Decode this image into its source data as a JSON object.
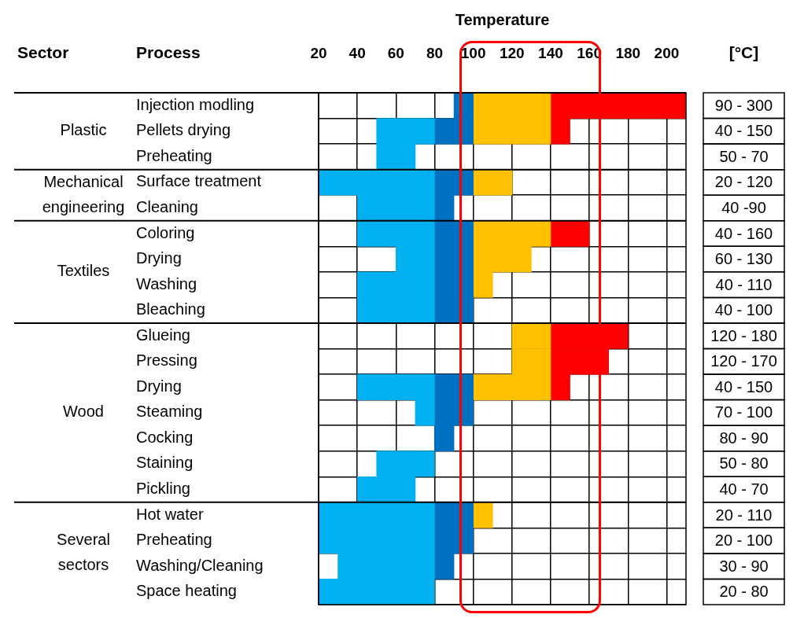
{
  "chart_data": {
    "type": "bar",
    "orientation": "horizontal",
    "xlabel": "Temperature",
    "ylabel": "Process",
    "y2label": "[°C]",
    "categories": [
      "Injection modling",
      "Pellets drying",
      "Preheating",
      "Surface treatment",
      "Cleaning",
      "Coloring",
      "Drying",
      "Washing",
      "Bleaching",
      "Glueing",
      "Pressing",
      "Drying",
      "Steaming",
      "Cocking",
      "Staining",
      "Pickling",
      "Hot water",
      "Preheating",
      "Washing/Cleaning",
      "Space heating"
    ],
    "series": [
      {
        "color": "#00b0f0",
        "base": [
          null,
          50,
          50,
          20,
          40,
          40,
          60,
          40,
          40,
          null,
          null,
          40,
          70,
          null,
          50,
          40,
          20,
          20,
          30,
          20
        ],
        "values": [
          null,
          30,
          20,
          60,
          40,
          40,
          20,
          40,
          40,
          null,
          null,
          40,
          10,
          null,
          30,
          30,
          60,
          60,
          50,
          60
        ]
      },
      {
        "color": "#0070c0",
        "base": [
          90,
          80,
          null,
          80,
          80,
          80,
          80,
          80,
          80,
          null,
          null,
          80,
          80,
          80,
          null,
          null,
          80,
          80,
          80,
          null
        ],
        "values": [
          10,
          20,
          null,
          20,
          10,
          20,
          20,
          20,
          20,
          null,
          null,
          20,
          20,
          10,
          null,
          null,
          20,
          20,
          10,
          null
        ]
      },
      {
        "color": "#ffc000",
        "base": [
          100,
          100,
          null,
          100,
          null,
          100,
          100,
          100,
          null,
          120,
          120,
          100,
          null,
          null,
          null,
          null,
          100,
          null,
          null,
          null
        ],
        "values": [
          40,
          40,
          null,
          20,
          null,
          40,
          30,
          10,
          null,
          20,
          20,
          40,
          null,
          null,
          null,
          null,
          10,
          null,
          null,
          null
        ]
      },
      {
        "color": "#ff0000",
        "base": [
          140,
          140,
          null,
          null,
          null,
          140,
          null,
          null,
          null,
          140,
          140,
          140,
          null,
          null,
          null,
          null,
          null,
          null,
          null,
          null
        ],
        "values": [
          70,
          10,
          null,
          null,
          null,
          20,
          null,
          null,
          null,
          40,
          30,
          10,
          null,
          null,
          null,
          null,
          null,
          null,
          null,
          null
        ]
      }
    ],
    "value_labels": [
      "90 - 300",
      "40 - 150",
      "50 - 70",
      "20 - 120",
      "40 -90",
      "40 - 160",
      "60 - 130",
      "40 - 110",
      "40 - 100",
      "120 - 180",
      "120 - 170",
      "40 - 150",
      "70 - 100",
      "80 - 90",
      "50 - 80",
      "40 - 70",
      "20 - 110",
      "20 - 100",
      "30 - 90",
      "20 - 80"
    ],
    "annotations": [
      "Sector",
      "Plastic",
      "Mechanical engineering",
      "Textiles",
      "Wood",
      "Several sectors"
    ],
    "xlim": [
      20,
      210
    ],
    "xticks": [
      20,
      40,
      60,
      80,
      100,
      120,
      140,
      160,
      180,
      200
    ],
    "grid": true,
    "legend": false
  }
}
